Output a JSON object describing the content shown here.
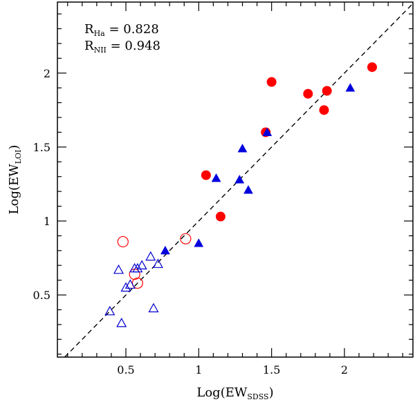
{
  "chart_data": {
    "type": "scatter",
    "xlabel": {
      "main": "Log(EW",
      "sub": "SDSS",
      "close": ")"
    },
    "ylabel": {
      "main": "Log(EW",
      "sub": "LOI",
      "close": ")"
    },
    "xlim": [
      0.03,
      2.47
    ],
    "ylim": [
      0.08,
      2.48
    ],
    "xticks": [
      {
        "value": 0.5,
        "label": "0.5"
      },
      {
        "value": 1.0,
        "label": "1"
      },
      {
        "value": 1.5,
        "label": "1.5"
      },
      {
        "value": 2.0,
        "label": "2"
      }
    ],
    "yticks": [
      {
        "value": 0.5,
        "label": "0.5"
      },
      {
        "value": 1.0,
        "label": "1"
      },
      {
        "value": 1.5,
        "label": "1.5"
      },
      {
        "value": 2.0,
        "label": "2"
      }
    ],
    "minor_step": 0.1,
    "reference_line": {
      "style": "dashed",
      "equation": "y = x"
    },
    "annotations": [
      {
        "main": "R",
        "sub": "Ha",
        "rest": " = 0.828"
      },
      {
        "main": "R",
        "sub": "NII",
        "rest": " = 0.948"
      }
    ],
    "series": [
      {
        "name": "filled-circles",
        "marker": "circle",
        "filled": true,
        "color": "#ff0000",
        "points": [
          [
            1.5,
            1.94
          ],
          [
            1.05,
            1.31
          ],
          [
            1.15,
            1.03
          ],
          [
            1.46,
            1.6
          ],
          [
            1.75,
            1.86
          ],
          [
            1.86,
            1.75
          ],
          [
            1.88,
            1.88
          ],
          [
            2.19,
            2.04
          ]
        ]
      },
      {
        "name": "filled-triangles",
        "marker": "triangle",
        "filled": true,
        "color": "#0000dd",
        "points": [
          [
            0.77,
            0.8
          ],
          [
            1.0,
            0.85
          ],
          [
            1.12,
            1.29
          ],
          [
            1.28,
            1.28
          ],
          [
            1.3,
            1.49
          ],
          [
            1.34,
            1.21
          ],
          [
            1.47,
            1.6
          ],
          [
            2.04,
            1.9
          ]
        ]
      },
      {
        "name": "open-circles",
        "marker": "circle",
        "filled": false,
        "color": "#ff0000",
        "points": [
          [
            0.48,
            0.86
          ],
          [
            0.56,
            0.64
          ],
          [
            0.58,
            0.58
          ],
          [
            0.91,
            0.88
          ]
        ]
      },
      {
        "name": "open-triangles",
        "marker": "triangle",
        "filled": false,
        "color": "#0000cc",
        "points": [
          [
            0.39,
            0.39
          ],
          [
            0.45,
            0.67
          ],
          [
            0.47,
            0.31
          ],
          [
            0.5,
            0.55
          ],
          [
            0.53,
            0.57
          ],
          [
            0.56,
            0.68
          ],
          [
            0.58,
            0.68
          ],
          [
            0.61,
            0.7
          ],
          [
            0.67,
            0.76
          ],
          [
            0.69,
            0.41
          ],
          [
            0.72,
            0.71
          ]
        ]
      }
    ]
  }
}
